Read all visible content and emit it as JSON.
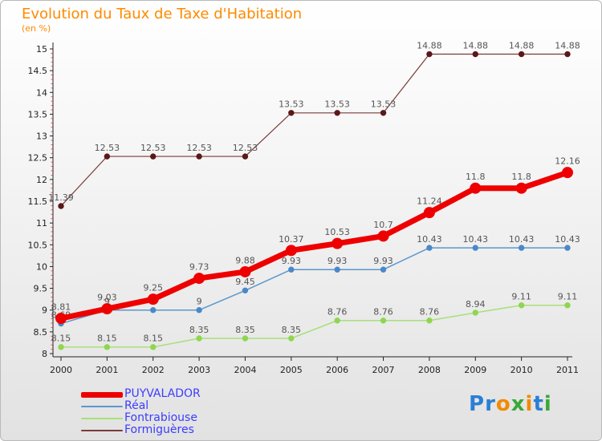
{
  "title": "Evolution du Taux de Taxe d'Habitation",
  "subtitle": "(en %)",
  "logo": {
    "text": "Proxiti",
    "colors": [
      "#2a7fd4",
      "#2a7fd4",
      "#f28a00",
      "#3aa83a",
      "#f28a00",
      "#2a7fd4",
      "#3aa83a"
    ]
  },
  "chart_data": {
    "type": "line",
    "x": [
      "2000",
      "2001",
      "2002",
      "2003",
      "2004",
      "2005",
      "2006",
      "2007",
      "2008",
      "2009",
      "2010",
      "2011"
    ],
    "ylim": [
      8,
      15
    ],
    "yticks": [
      "8",
      "8.5",
      "9",
      "9.5",
      "10",
      "10.5",
      "11",
      "11.5",
      "12",
      "12.5",
      "13",
      "13.5",
      "14",
      "14.5",
      "15"
    ],
    "legend_position": "bottom-left",
    "series": [
      {
        "name": "Formiguères",
        "color": "#7a3b3b",
        "dot": "#5a1818",
        "width": 1.2,
        "r": 3.2,
        "values": [
          11.39,
          12.53,
          12.53,
          12.53,
          12.53,
          13.53,
          13.53,
          13.53,
          14.88,
          14.88,
          14.88,
          14.88
        ],
        "labels": [
          "11.39",
          "12.53",
          "12.53",
          "12.53",
          "12.53",
          "13.53",
          "13.53",
          "13.53",
          "14.88",
          "14.88",
          "14.88",
          "14.88"
        ]
      },
      {
        "name": "Fontrabiouse",
        "color": "#a8e07a",
        "dot": "#8fd650",
        "width": 1.5,
        "r": 3.2,
        "values": [
          8.15,
          8.15,
          8.15,
          8.35,
          8.35,
          8.35,
          8.76,
          8.76,
          8.76,
          8.94,
          9.11,
          9.11
        ],
        "labels": [
          "8.15",
          "8.15",
          "8.15",
          "8.35",
          "8.35",
          "8.35",
          "8.76",
          "8.76",
          "8.76",
          "8.94",
          "9.11",
          "9.11"
        ]
      },
      {
        "name": "Réal",
        "color": "#5b97cc",
        "dot": "#4a88c8",
        "width": 1.5,
        "r": 3.2,
        "values": [
          8.69,
          9,
          9,
          9,
          9.45,
          9.93,
          9.93,
          9.93,
          10.43,
          10.43,
          10.43,
          10.43
        ],
        "labels": [
          "8.69",
          "9",
          "9",
          "9",
          "9.45",
          "9.93",
          "9.93",
          "9.93",
          "10.43",
          "10.43",
          "10.43",
          "10.43"
        ]
      },
      {
        "name": "PUYVALADOR",
        "color": "#ee0000",
        "dot": "#ee0000",
        "width": 7,
        "r": 6.5,
        "values": [
          8.81,
          9.03,
          9.25,
          9.73,
          9.88,
          10.37,
          10.53,
          10.7,
          11.24,
          11.8,
          11.8,
          12.16
        ],
        "labels": [
          "8.81",
          "9.03",
          "9.25",
          "9.73",
          "9.88",
          "10.37",
          "10.53",
          "10.7",
          "11.24",
          "11.8",
          "11.8",
          "12.16"
        ]
      }
    ],
    "legend_order": [
      3,
      2,
      1,
      0
    ]
  }
}
